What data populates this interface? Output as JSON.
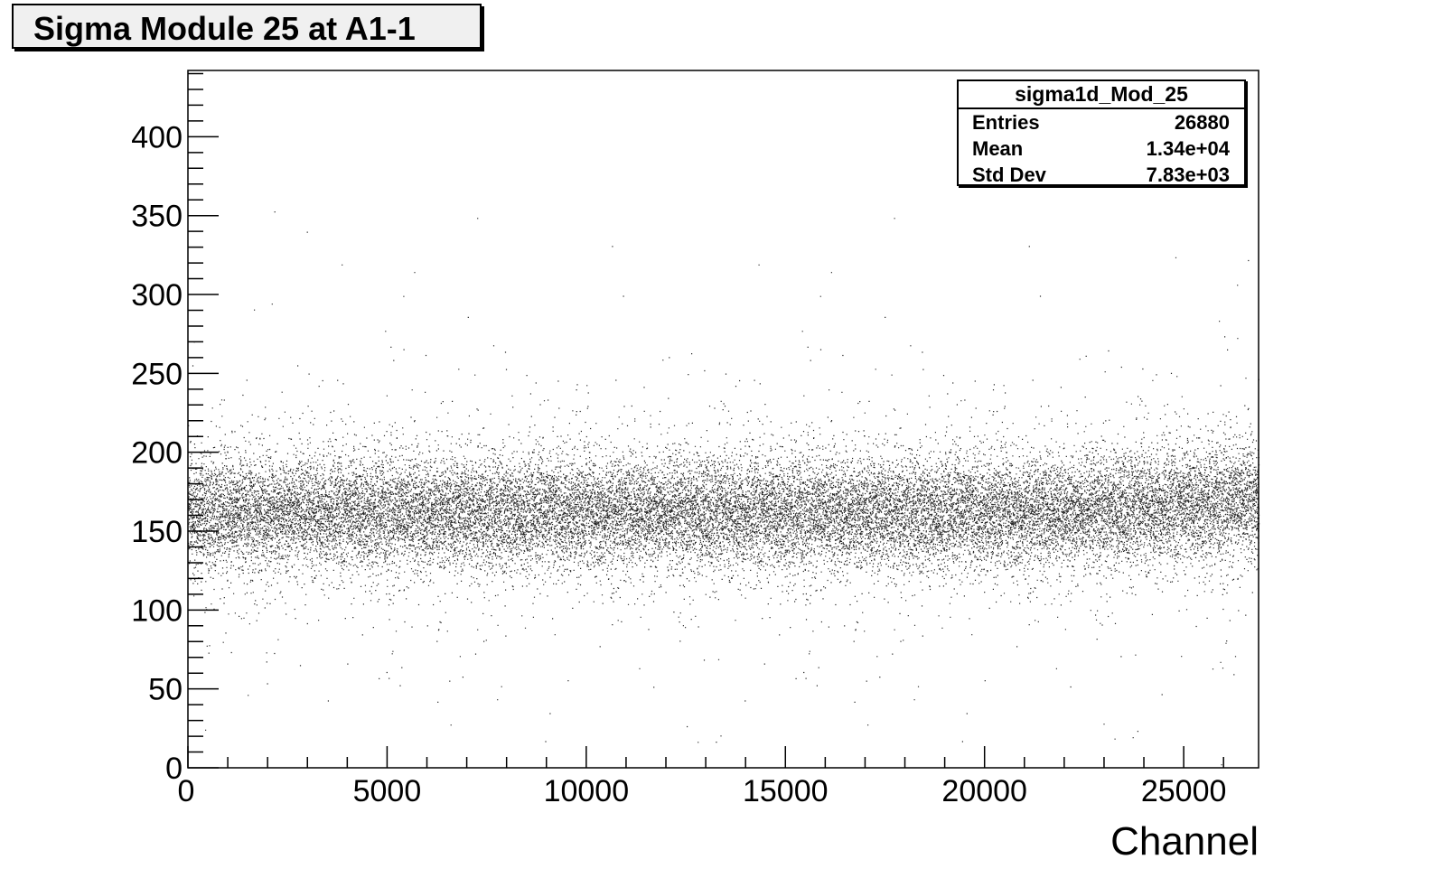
{
  "chart_data": {
    "type": "scatter",
    "title": "Sigma Module 25 at A1-1",
    "xlabel": "Channel",
    "ylabel": "",
    "xlim": [
      0,
      26880
    ],
    "ylim": [
      0,
      442
    ],
    "x_ticks": [
      0,
      5000,
      10000,
      15000,
      20000,
      25000
    ],
    "y_ticks": [
      0,
      50,
      100,
      150,
      200,
      250,
      300,
      350,
      400
    ],
    "x_tick_labels": [
      "0",
      "5000",
      "10000",
      "15000",
      "20000",
      "25000"
    ],
    "y_tick_labels": [
      "0",
      "50",
      "100",
      "150",
      "200",
      "250",
      "300",
      "350",
      "400"
    ],
    "grid": false,
    "legend": "top-right",
    "marker_color": "#000000",
    "n_points": 26880,
    "center_y": 162,
    "band_y_range": [
      130,
      205
    ],
    "stats_box": {
      "name": "sigma1d_Mod_25",
      "rows": [
        {
          "label": "Entries",
          "value": "26880"
        },
        {
          "label": "Mean",
          "value": "1.34e+04"
        },
        {
          "label": "Std Dev",
          "value": "7.83e+03"
        }
      ]
    }
  }
}
